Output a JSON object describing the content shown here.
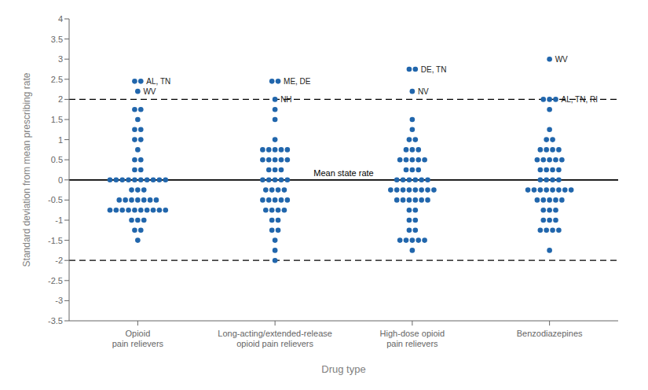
{
  "chart_data": {
    "type": "scatter",
    "xlabel": "Drug type",
    "ylabel": "Standard deviation from mean prescribing rate",
    "color": "#2166ac",
    "grid": false,
    "ylim": [
      -3.5,
      4.0
    ],
    "yticks": [
      -3.5,
      -3,
      -2.5,
      -2,
      -1.5,
      -1,
      -0.5,
      0,
      0.5,
      1,
      1.5,
      2,
      2.5,
      3,
      3.5,
      4
    ],
    "categories": [
      "Opioid\npain relievers",
      "Long-acting/extended-release\nopioid pain relievers",
      "High-dose opioid\npain relievers",
      "Benzodiazepines"
    ],
    "values": [
      [
        2.45,
        2.45,
        2.2,
        1.75,
        1.75,
        1.5,
        1.25,
        1.25,
        1.0,
        1.0,
        0.75,
        0.5,
        0.5,
        0.25,
        0.25,
        0.0,
        0.0,
        0.0,
        0.0,
        0.0,
        0.0,
        0.0,
        0.0,
        0.0,
        0.0,
        -0.25,
        -0.25,
        -0.25,
        -0.5,
        -0.5,
        -0.5,
        -0.5,
        -0.5,
        -0.5,
        -0.5,
        -0.75,
        -0.75,
        -0.75,
        -0.75,
        -0.75,
        -0.75,
        -0.75,
        -0.75,
        -0.75,
        -0.75,
        -1.0,
        -1.0,
        -1.0,
        -1.25,
        -1.25,
        -1.5
      ],
      [
        2.45,
        2.45,
        2.0,
        1.75,
        1.5,
        1.0,
        0.75,
        0.75,
        0.75,
        0.75,
        0.75,
        0.5,
        0.5,
        0.5,
        0.5,
        0.5,
        0.25,
        0.25,
        0.25,
        0.0,
        0.0,
        0.0,
        0.0,
        0.0,
        -0.25,
        -0.25,
        -0.25,
        -0.25,
        -0.5,
        -0.5,
        -0.5,
        -0.5,
        -0.5,
        -0.75,
        -0.75,
        -0.75,
        -0.75,
        -1.0,
        -1.0,
        -1.25,
        -1.25,
        -1.5,
        -1.75,
        -2.0
      ],
      [
        2.75,
        2.75,
        2.2,
        1.5,
        1.25,
        1.0,
        1.0,
        0.75,
        0.75,
        0.75,
        0.5,
        0.5,
        0.5,
        0.5,
        0.5,
        0.25,
        0.25,
        0.25,
        0.0,
        0.0,
        0.0,
        0.0,
        0.0,
        0.0,
        -0.25,
        -0.25,
        -0.25,
        -0.25,
        -0.25,
        -0.25,
        -0.25,
        -0.25,
        -0.5,
        -0.5,
        -0.5,
        -0.5,
        -0.5,
        -0.5,
        -0.75,
        -0.75,
        -1.0,
        -1.0,
        -1.25,
        -1.25,
        -1.5,
        -1.5,
        -1.5,
        -1.5,
        -1.5,
        -1.75
      ],
      [
        3.0,
        2.0,
        2.0,
        2.0,
        1.75,
        1.25,
        1.0,
        1.0,
        0.75,
        0.75,
        0.75,
        0.75,
        0.5,
        0.5,
        0.5,
        0.5,
        0.5,
        0.25,
        0.25,
        0.25,
        0.25,
        0.0,
        0.0,
        0.0,
        0.0,
        -0.25,
        -0.25,
        -0.25,
        -0.25,
        -0.25,
        -0.25,
        -0.25,
        -0.25,
        -0.5,
        -0.5,
        -0.5,
        -0.5,
        -0.5,
        -0.75,
        -0.75,
        -0.75,
        -1.0,
        -1.0,
        -1.0,
        -1.25,
        -1.25,
        -1.25,
        -1.25,
        -1.75
      ]
    ],
    "reference_lines": [
      {
        "y": 0.0,
        "line_style": "solid",
        "label": "Mean state rate"
      },
      {
        "y": -2.0,
        "line_style": "dashed"
      },
      {
        "y": 2.0,
        "line_style": "dashed"
      }
    ],
    "annotations": [
      {
        "category": "Opioid\npain relievers",
        "y": 2.45,
        "text": "AL, TN"
      },
      {
        "category": "Opioid\npain relievers",
        "y": 2.2,
        "text": "WV"
      },
      {
        "category": "Long-acting/extended-release\nopioid pain relievers",
        "y": 2.45,
        "text": "ME, DE"
      },
      {
        "category": "Long-acting/extended-release\nopioid pain relievers",
        "y": 2.0,
        "text": "NH"
      },
      {
        "category": "High-dose opioid\npain relievers",
        "y": 2.75,
        "text": "DE, TN"
      },
      {
        "category": "High-dose opioid\npain relievers",
        "y": 2.2,
        "text": "NV"
      },
      {
        "category": "Benzodiazepines",
        "y": 3.0,
        "text": "WV"
      },
      {
        "category": "Benzodiazepines",
        "y": 2.0,
        "text": "AL, TN, RI"
      }
    ]
  }
}
